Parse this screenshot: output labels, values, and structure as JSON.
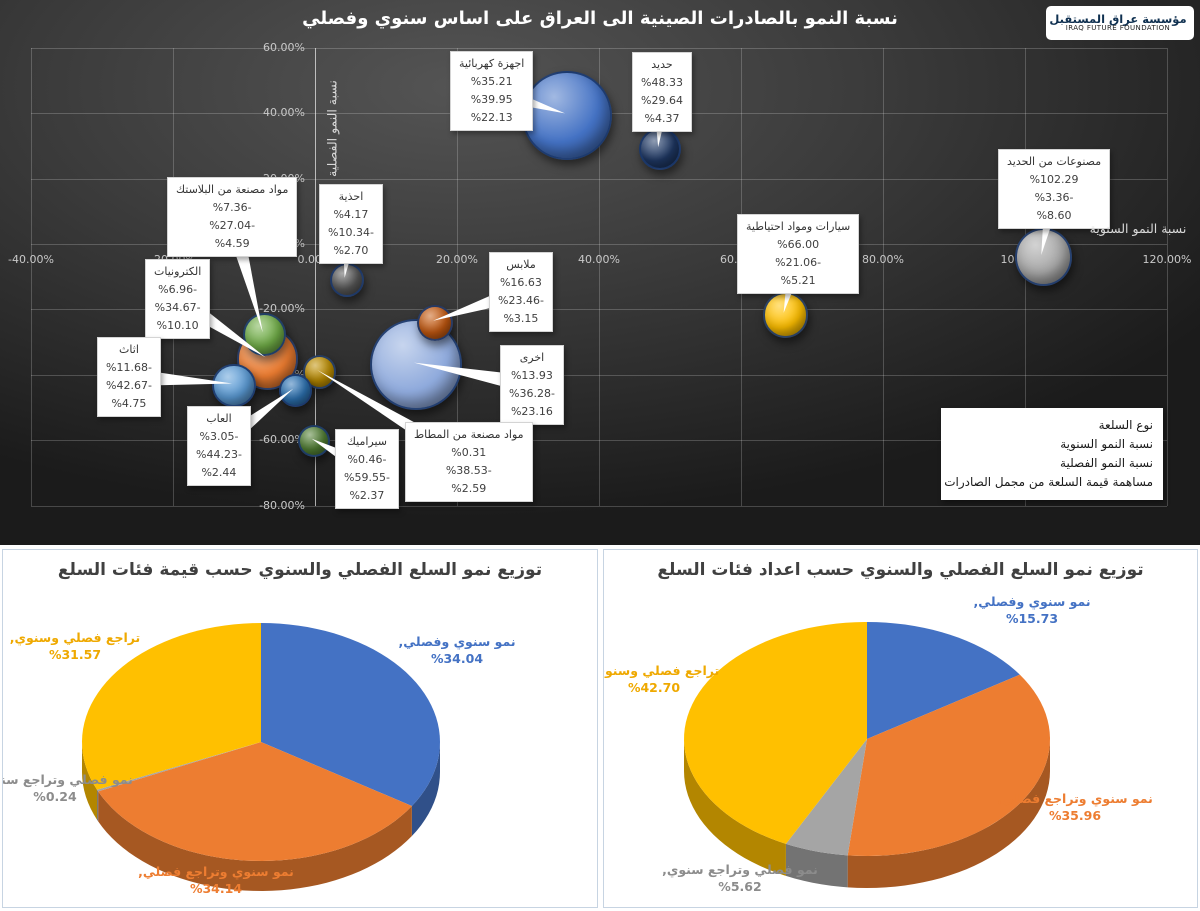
{
  "header": {
    "logo": {
      "line1": "مؤسسة عراق المستقبل",
      "line2": "IRAQ FUTURE FOUNDATION"
    }
  },
  "chart_data": [
    {
      "type": "scatter",
      "subtype": "bubble",
      "title": "نسبة النمو بالصادرات الصينية الى العراق على اساس سنوي وفصلي",
      "xlabel": "نسبة النمو السنوية",
      "ylabel": "نسبة النمو الفصلية",
      "xlim": [
        -40,
        120
      ],
      "ylim": [
        -80,
        60
      ],
      "grid": true,
      "x_ticks": [
        {
          "v": -40,
          "label": "-40.00%"
        },
        {
          "v": -20,
          "label": "-20.00%"
        },
        {
          "v": 0,
          "label": "0.00%"
        },
        {
          "v": 20,
          "label": "20.00%"
        },
        {
          "v": 40,
          "label": "40.00%"
        },
        {
          "v": 60,
          "label": "60.00%"
        },
        {
          "v": 80,
          "label": "80.00%"
        },
        {
          "v": 100,
          "label": "100.00%"
        },
        {
          "v": 120,
          "label": "120.00%"
        }
      ],
      "y_ticks": [
        {
          "v": 60,
          "label": "60.00%"
        },
        {
          "v": 40,
          "label": "40.00%"
        },
        {
          "v": 20,
          "label": "20.00%"
        },
        {
          "v": 0,
          "label": "0.00%"
        },
        {
          "v": -20,
          "label": "-20.00%"
        },
        {
          "v": -40,
          "label": "-40.00%"
        },
        {
          "v": -60,
          "label": "-60.00%"
        },
        {
          "v": -80,
          "label": "-80.00%"
        }
      ],
      "legend_title_lines": [
        "نوع السلعة",
        "نسبة النمو السنوية",
        "نسبة النمو الفصلية",
        "مساهمة قيمة السلعة من مجمل الصادرات"
      ],
      "points": [
        {
          "id": "electrical-appliances",
          "name": "اجهزة كهربائية",
          "annual": 35.21,
          "quarterly": 39.95,
          "share": 22.13,
          "values": [
            "%35.21",
            "%39.95",
            "%22.13"
          ],
          "color": "#4472C4",
          "box": {
            "left": 450,
            "top": 51
          }
        },
        {
          "id": "iron",
          "name": "حديد",
          "annual": 48.33,
          "quarterly": 29.64,
          "share": 4.37,
          "values": [
            "%48.33",
            "%29.64",
            "%4.37"
          ],
          "color": "#1F3864",
          "box": {
            "left": 632,
            "top": 52
          }
        },
        {
          "id": "iron-manufactures",
          "name": "مصنوعات من الحديد",
          "annual": 102.29,
          "quarterly": -3.36,
          "share": 8.6,
          "values": [
            "%102.29",
            "%3.36-",
            "%8.60"
          ],
          "color": "#A6A6A6",
          "box": {
            "left": 998,
            "top": 149
          }
        },
        {
          "id": "cars-spare-parts",
          "name": "سيارات ومواد احتياطية",
          "annual": 66.0,
          "quarterly": -21.06,
          "share": 5.21,
          "values": [
            "%66.00",
            "%21.06-",
            "%5.21"
          ],
          "color": "#FFC000",
          "box": {
            "left": 737,
            "top": 214
          }
        },
        {
          "id": "shoes",
          "name": "احذية",
          "annual": 4.17,
          "quarterly": -10.34,
          "share": 2.7,
          "values": [
            "%4.17",
            "%10.34-",
            "%2.70"
          ],
          "color": "#595959",
          "box": {
            "left": 319,
            "top": 184
          }
        },
        {
          "id": "clothes",
          "name": "ملابس",
          "annual": 16.63,
          "quarterly": -23.46,
          "share": 3.15,
          "values": [
            "%16.63",
            "%23.46-",
            "%3.15"
          ],
          "color": "#C55A11",
          "box": {
            "left": 489,
            "top": 252
          }
        },
        {
          "id": "other",
          "name": "اخرى",
          "annual": 13.93,
          "quarterly": -36.28,
          "share": 23.16,
          "values": [
            "%13.93",
            "%36.28-",
            "%23.16"
          ],
          "color": "#8FAADC",
          "box": {
            "left": 500,
            "top": 345
          }
        },
        {
          "id": "rubber-products",
          "name": "مواد مصنعة من المطاط",
          "annual": 0.31,
          "quarterly": -38.53,
          "share": 2.59,
          "values": [
            "%0.31",
            "%38.53-",
            "%2.59"
          ],
          "color": "#BF8F00",
          "box": {
            "left": 405,
            "top": 422
          }
        },
        {
          "id": "plastic-products",
          "name": "مواد مصنعة من البلاستك",
          "annual": -7.36,
          "quarterly": -27.04,
          "share": 4.59,
          "values": [
            "%7.36-",
            "%27.04-",
            "%4.59"
          ],
          "color": "#70AD47",
          "box": {
            "left": 167,
            "top": 177
          }
        },
        {
          "id": "electronics",
          "name": "الكترونيات",
          "annual": -6.96,
          "quarterly": -34.67,
          "share": 10.1,
          "values": [
            "%6.96-",
            "%34.67-",
            "%10.10"
          ],
          "color": "#ED7D31",
          "box": {
            "left": 145,
            "top": 259
          }
        },
        {
          "id": "furniture",
          "name": "اثاث",
          "annual": -11.68,
          "quarterly": -42.67,
          "share": 4.75,
          "values": [
            "%11.68-",
            "%42.67-",
            "%4.75"
          ],
          "color": "#5B9BD5",
          "box": {
            "left": 97,
            "top": 337
          }
        },
        {
          "id": "toys",
          "name": "العاب",
          "annual": -3.05,
          "quarterly": -44.23,
          "share": 2.44,
          "values": [
            "%3.05-",
            "%44.23-",
            "%2.44"
          ],
          "color": "#2E75B6",
          "box": {
            "left": 187,
            "top": 406
          }
        },
        {
          "id": "ceramic",
          "name": "سيراميك",
          "annual": -0.46,
          "quarterly": -59.55,
          "share": 2.37,
          "values": [
            "%0.46-",
            "%59.55-",
            "%2.37"
          ],
          "color": "#538135",
          "box": {
            "left": 335,
            "top": 429
          }
        }
      ]
    },
    {
      "type": "pie",
      "title": "توزيع نمو السلع الفصلي والسنوي حسب قيمة فئات السلع",
      "legend_position": "data-labels",
      "slices": [
        {
          "id": "growth-annual-and-quarterly",
          "label": "نمو سنوي وفصلي",
          "value": 34.04,
          "display": "%34.04",
          "color": "#4472C4",
          "label_color": "#4472C4",
          "label_pos": {
            "x": 454,
            "y": 100
          }
        },
        {
          "id": "annual-growth-quarterly-decline",
          "label": "نمو سنوي وتراجع فصلي",
          "value": 34.14,
          "display": "%34.14",
          "color": "#ED7D31",
          "label_color": "#ED7D31",
          "label_pos": {
            "x": 213,
            "y": 330
          }
        },
        {
          "id": "quarterly-growth-annual-decline",
          "label": "نمو فصلي وتراجع سنوي",
          "value": 0.24,
          "display": "%0.24",
          "color": "#A5A5A5",
          "label_color": "#8C8C8C",
          "label_pos": {
            "x": 52,
            "y": 238
          }
        },
        {
          "id": "decline-annual-and-quarterly",
          "label": "تراجع فصلي وسنوي",
          "value": 31.57,
          "display": "%31.57",
          "color": "#FFC000",
          "label_color": "#EFA900",
          "label_pos": {
            "x": 72,
            "y": 96
          }
        }
      ]
    },
    {
      "type": "pie",
      "title": "توزيع نمو السلع الفصلي والسنوي حسب اعداد فئات السلع",
      "legend_position": "data-labels",
      "slices": [
        {
          "id": "growth-annual-and-quarterly",
          "label": "نمو سنوي وفصلي",
          "value": 15.73,
          "display": "%15.73",
          "color": "#4472C4",
          "label_color": "#4472C4",
          "label_pos": {
            "x": 428,
            "y": 60
          }
        },
        {
          "id": "annual-growth-quarterly-decline",
          "label": "نمو سنوي وتراجع فصلي",
          "value": 35.96,
          "display": "%35.96",
          "color": "#ED7D31",
          "label_color": "#ED7D31",
          "label_pos": {
            "x": 471,
            "y": 257
          }
        },
        {
          "id": "quarterly-growth-annual-decline",
          "label": "نمو فصلي وتراجع سنوي",
          "value": 5.62,
          "display": "%5.62",
          "color": "#A5A5A5",
          "label_color": "#8C8C8C",
          "label_pos": {
            "x": 136,
            "y": 328
          }
        },
        {
          "id": "decline-annual-and-quarterly",
          "label": "تراجع فصلي وسنوي",
          "value": 42.7,
          "display": "%42.70",
          "color": "#FFC000",
          "label_color": "#EFA900",
          "label_pos": {
            "x": 50,
            "y": 129
          }
        }
      ]
    }
  ]
}
